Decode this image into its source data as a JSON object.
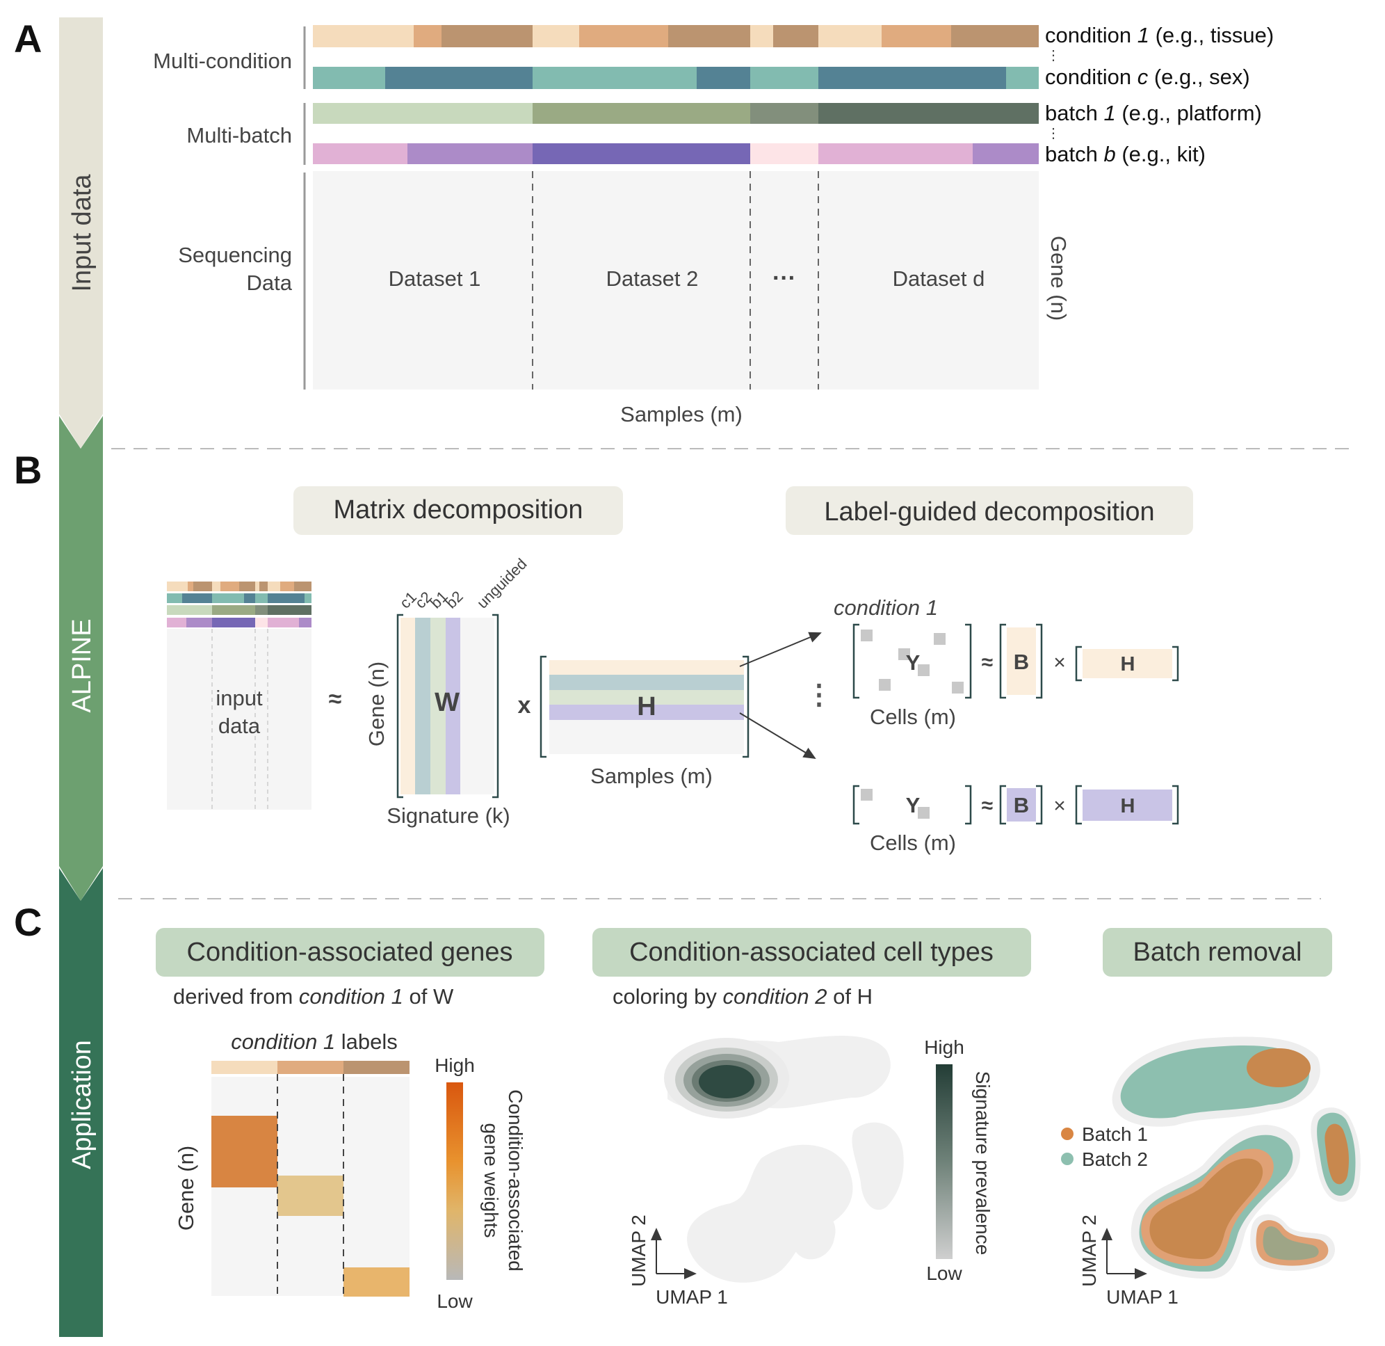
{
  "panels": {
    "a": "A",
    "b": "B",
    "c": "C"
  },
  "sidebar": {
    "input": "Input data",
    "alpine": "ALPINE",
    "application": "Application"
  },
  "colors": {
    "tan": [
      "#f5dcbc",
      "#e0ab7f",
      "#bb9470"
    ],
    "teal": [
      "#82bbb0",
      "#548294"
    ],
    "green": [
      "#c8d9bd",
      "#9aaa84",
      "#828f7c",
      "#5f7063"
    ],
    "purple": [
      "#e1b1d5",
      "#ac8bc8",
      "#7667b5",
      "#fde4e7"
    ],
    "arrow_input": "#e5e3d6",
    "arrow_alpine": "#6da070",
    "arrow_app": "#357357",
    "pill_light": "#eeede5",
    "pill_green": "#c4d8c2",
    "batch1": "#d98643",
    "batch2": "#8dbfaf"
  },
  "panel_a": {
    "multi_condition": "Multi-condition",
    "multi_batch": "Multi-batch",
    "sequencing_line1": "Sequencing",
    "sequencing_line2": "Data",
    "condition1_pre": "condition ",
    "condition1_num": "1",
    "condition1_post": " (e.g., tissue)",
    "conditionc_pre": "condition ",
    "conditionc_var": "c",
    "conditionc_post": " (e.g., sex)",
    "batch1_pre": "batch ",
    "batch1_num": "1",
    "batch1_post": " (e.g., platform)",
    "batchb_pre": "batch ",
    "batchb_var": "b",
    "batchb_post": " (e.g., kit)",
    "vdots": "⋮",
    "datasets": [
      "Dataset 1",
      "Dataset 2",
      "Dataset d"
    ],
    "ellipsis": "···",
    "gene_label": "Gene (n)",
    "samples_label": "Samples (m)"
  },
  "panel_b": {
    "matrix_decomposition": "Matrix decomposition",
    "label_guided": "Label-guided decomposition",
    "input_line1": "input",
    "input_line2": "data",
    "approx": "≈",
    "times": "x",
    "multiply": "×",
    "w": "W",
    "h": "H",
    "y": "Y",
    "b": "B",
    "gene_label": "Gene (n)",
    "signature_label": "Signature (k)",
    "samples_label": "Samples (m)",
    "cells_label": "Cells (m)",
    "condition1": "condition 1",
    "col_labels": [
      "c1",
      "c2",
      "b1",
      "b2",
      "unguided"
    ],
    "vdots": "⋮"
  },
  "panel_c": {
    "genes_title": "Condition-associated genes",
    "genes_sub_pre": "derived from ",
    "genes_sub_it": "condition 1",
    "genes_sub_post": " of W",
    "celltypes_title": "Condition-associated cell types",
    "celltypes_sub_pre": "coloring by ",
    "celltypes_sub_it": "condition 2",
    "celltypes_sub_post": " of H",
    "batch_title": "Batch removal",
    "labels_it": "condition 1",
    "labels_post": " labels",
    "gene_label": "Gene (n)",
    "high": "High",
    "low": "Low",
    "weights_line1": "Condition-associated",
    "weights_line2": "gene weights",
    "prevalence": "Signature prevalence",
    "umap1": "UMAP 1",
    "umap2": "UMAP 2",
    "batch1": "Batch 1",
    "batch2": "Batch 2"
  }
}
